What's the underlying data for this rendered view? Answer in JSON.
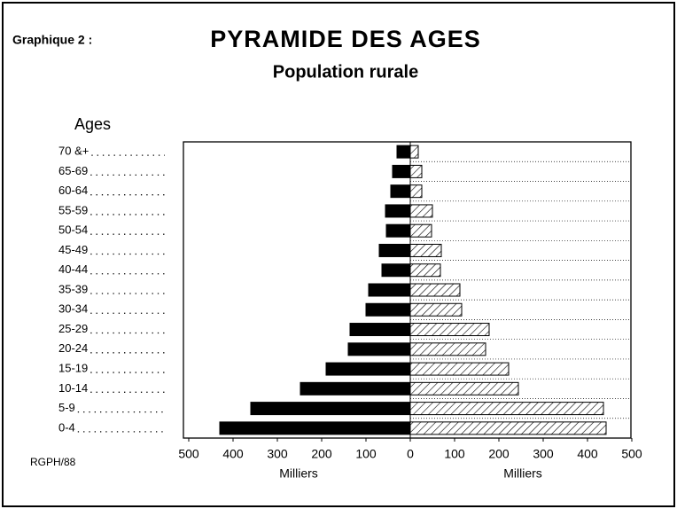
{
  "chart_data": {
    "type": "pyramid",
    "label": "Graphique 2 :",
    "title": "PYRAMIDE DES AGES",
    "subtitle": "Population rurale",
    "y_label": "Ages",
    "source": "RGPH/88",
    "x_label_left": "Milliers",
    "x_label_right": "Milliers",
    "categories": [
      "70 &+",
      "65-69",
      "60-64",
      "55-59",
      "50-54",
      "45-49",
      "40-44",
      "35-39",
      "30-34",
      "25-29",
      "20-24",
      "15-19",
      "10-14",
      "5-9",
      "0-4"
    ],
    "series": [
      {
        "color": "#000000",
        "side": "left",
        "values": [
          30,
          40,
          44,
          56,
          54,
          70,
          64,
          94,
          100,
          136,
          140,
          190,
          248,
          360,
          430
        ]
      },
      {
        "color": "#000000",
        "side": "right",
        "pattern": "hatch",
        "values": [
          18,
          26,
          26,
          50,
          48,
          70,
          68,
          112,
          116,
          178,
          170,
          222,
          244,
          436,
          442
        ]
      }
    ],
    "xlim": [
      0,
      500
    ],
    "xticks": [
      0,
      100,
      200,
      300,
      400,
      500
    ],
    "grid": true
  }
}
